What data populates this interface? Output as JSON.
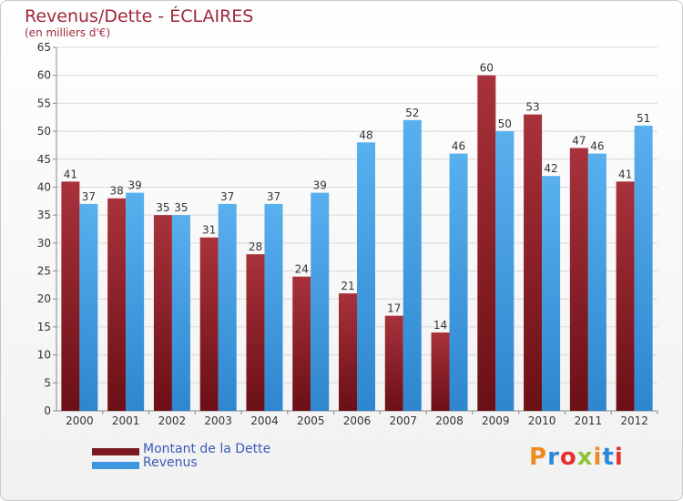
{
  "title": "Revenus/Dette - ÉCLAIRES",
  "subtitle": "(en milliers d'€)",
  "logo": {
    "text": "Proxiti",
    "colors": [
      "#f08a24",
      "#2a8ad8",
      "#e6302e",
      "#8fc33a",
      "#f08a24",
      "#2a8ad8",
      "#e6302e"
    ]
  },
  "colors": {
    "dette": "#6b0f16",
    "dette_light": "#a8323b",
    "revenus": "#2e86cf",
    "revenus_light": "#58b0ee",
    "axis": "#888888",
    "grid": "#d9d9d9",
    "text": "#333333"
  },
  "legend": [
    {
      "label": "Montant de la Dette",
      "color": "#7a1a20"
    },
    {
      "label": "Revenus",
      "color": "#3d97e0"
    }
  ],
  "chart_data": {
    "type": "bar",
    "categories": [
      "2000",
      "2001",
      "2002",
      "2003",
      "2004",
      "2005",
      "2006",
      "2007",
      "2008",
      "2009",
      "2010",
      "2011",
      "2012"
    ],
    "series": [
      {
        "name": "Montant de la Dette",
        "values": [
          41,
          38,
          35,
          31,
          28,
          24,
          21,
          17,
          14,
          60,
          53,
          47,
          41
        ]
      },
      {
        "name": "Revenus",
        "values": [
          37,
          39,
          35,
          37,
          37,
          39,
          48,
          52,
          46,
          50,
          42,
          46,
          51
        ]
      }
    ],
    "ylim": [
      0,
      65
    ],
    "yticks": [
      0,
      5,
      10,
      15,
      20,
      25,
      30,
      35,
      40,
      45,
      50,
      55,
      60,
      65
    ],
    "grid": true
  }
}
